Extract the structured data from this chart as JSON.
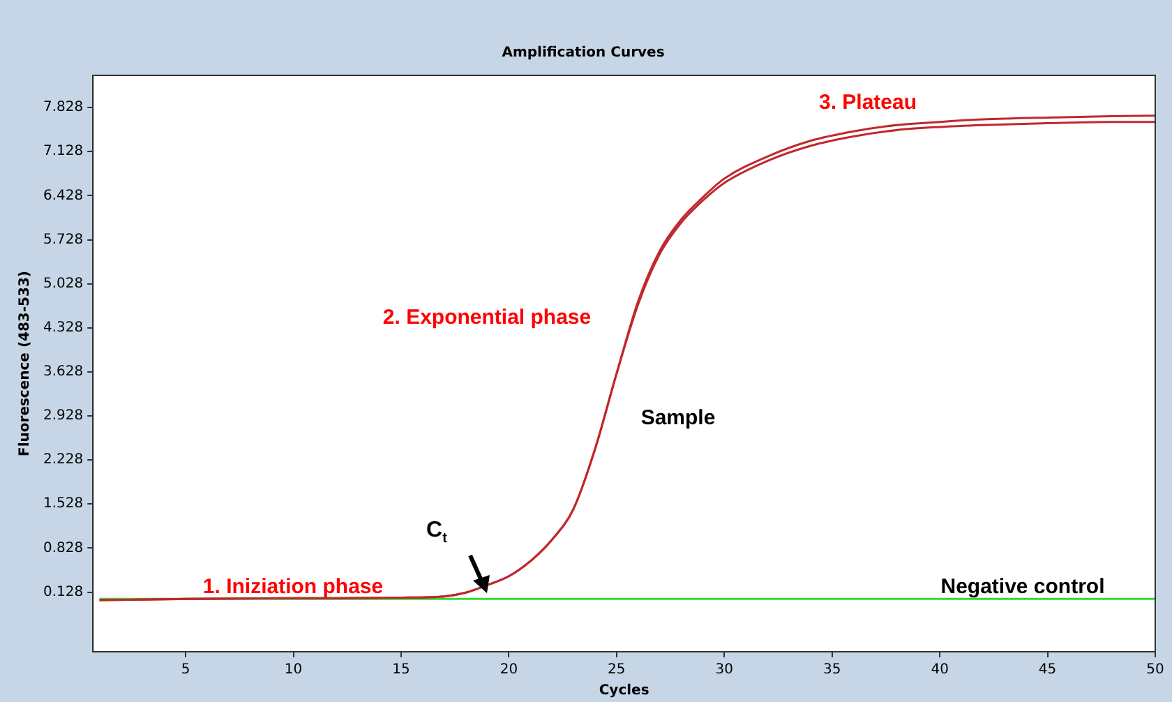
{
  "chart_data": {
    "type": "line",
    "title": "Amplification Curves",
    "xlabel": "Cycles",
    "ylabel": "Fluorescence (483-533)",
    "xlim": [
      0.7,
      50
    ],
    "xticks": [
      5,
      10,
      15,
      20,
      25,
      30,
      35,
      40,
      45,
      50
    ],
    "ylim": [
      -0.82,
      8.34
    ],
    "yticks": [
      0.128,
      0.828,
      1.528,
      2.228,
      2.928,
      3.628,
      4.328,
      5.028,
      5.728,
      6.428,
      7.128,
      7.828
    ],
    "grid": false,
    "legend": false,
    "marker": "none",
    "line_style": "solid",
    "series": [
      {
        "color": "#c0282d",
        "x": [
          1,
          5,
          10,
          15,
          17,
          18,
          19,
          20,
          21,
          22,
          23,
          24,
          25,
          26,
          27,
          28,
          29,
          30,
          32,
          34,
          36,
          38,
          40,
          42,
          45,
          48,
          50
        ],
        "values": [
          0.0,
          0.02,
          0.03,
          0.04,
          0.06,
          0.12,
          0.24,
          0.38,
          0.62,
          0.96,
          1.45,
          2.4,
          3.6,
          4.75,
          5.55,
          6.05,
          6.4,
          6.7,
          7.05,
          7.3,
          7.45,
          7.55,
          7.6,
          7.64,
          7.67,
          7.69,
          7.7
        ]
      },
      {
        "color": "#c0282d",
        "x": [
          1,
          5,
          10,
          15,
          17,
          18,
          19,
          20,
          21,
          22,
          23,
          24,
          25,
          26,
          27,
          28,
          29,
          30,
          32,
          34,
          36,
          38,
          40,
          42,
          45,
          48,
          50
        ],
        "values": [
          0.0,
          0.02,
          0.03,
          0.04,
          0.06,
          0.12,
          0.24,
          0.38,
          0.62,
          0.96,
          1.45,
          2.4,
          3.6,
          4.7,
          5.5,
          6.0,
          6.35,
          6.63,
          6.98,
          7.22,
          7.37,
          7.47,
          7.52,
          7.55,
          7.58,
          7.6,
          7.6
        ]
      },
      {
        "color": "#33dd33",
        "x": [
          1,
          50
        ],
        "values": [
          0.02,
          0.02
        ]
      }
    ],
    "annotations": [
      "1. Iniziation phase",
      "C$_{t}$",
      "2. Exponential phase",
      "Sample",
      "3. Plateau",
      "Negative control"
    ]
  }
}
